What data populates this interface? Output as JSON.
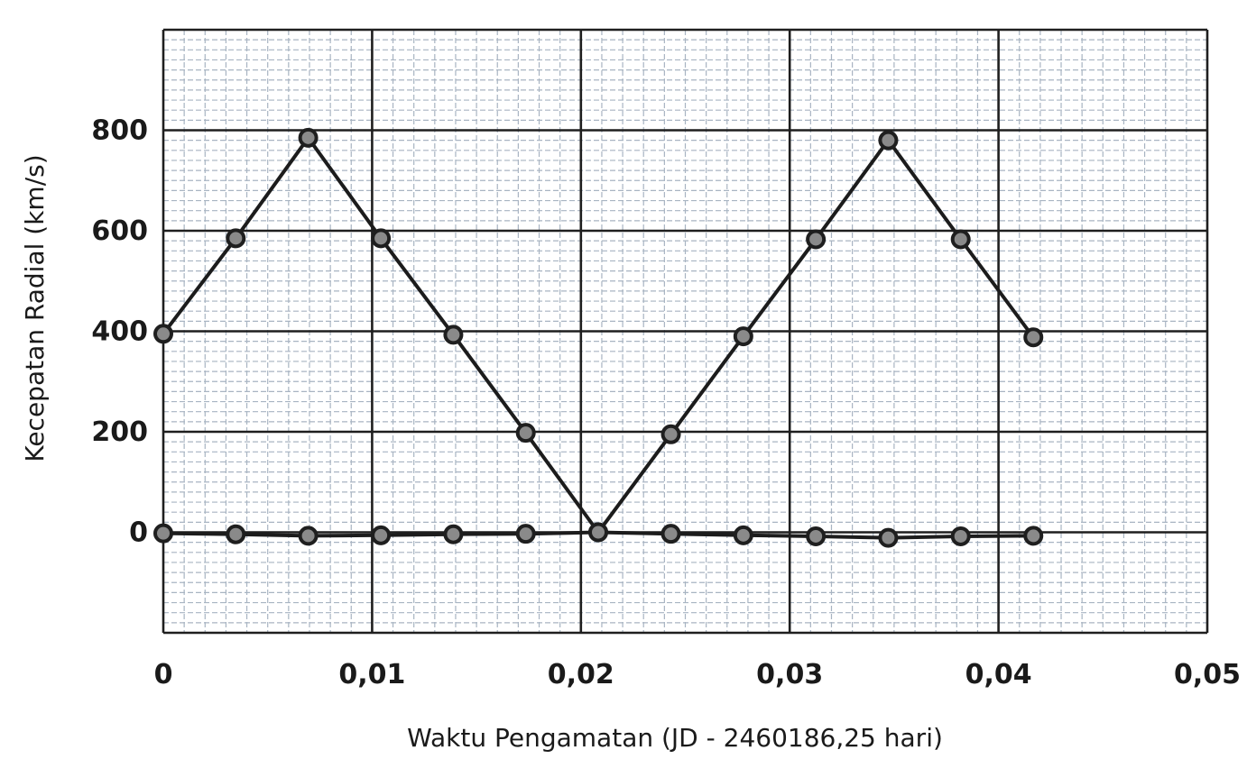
{
  "chart_data": {
    "type": "line",
    "xlabel": "Waktu Pengamatan (JD - 2460186,25 hari)",
    "ylabel": "Kecepatan Radial  (km/s)",
    "xlim": [
      0,
      0.05
    ],
    "ylim": [
      -200,
      1000
    ],
    "x_ticks": [
      "0",
      "0,01",
      "0,02",
      "0,03",
      "0,04",
      "0,05"
    ],
    "x_tick_values": [
      0,
      0.01,
      0.02,
      0.03,
      0.04,
      0.05
    ],
    "y_ticks": [
      "0",
      "200",
      "400",
      "600",
      "800"
    ],
    "y_tick_values": [
      0,
      200,
      400,
      600,
      800
    ],
    "grid": true,
    "series": [
      {
        "x": [
          0,
          0.00347,
          0.00694,
          0.01042,
          0.01389,
          0.01736,
          0.02083,
          0.02431,
          0.02778,
          0.03125,
          0.03472,
          0.03819,
          0.04167
        ],
        "values": [
          395,
          585,
          785,
          585,
          393,
          198,
          0,
          195,
          390,
          583,
          780,
          583,
          388
        ]
      },
      {
        "x": [
          0,
          0.00347,
          0.00694,
          0.01042,
          0.01389,
          0.01736,
          0.02083,
          0.02431,
          0.02778,
          0.03125,
          0.03472,
          0.03819,
          0.04167
        ],
        "values": [
          -2,
          -4,
          -7,
          -6,
          -4,
          -3,
          0,
          -3,
          -6,
          -8,
          -11,
          -8,
          -7
        ]
      }
    ]
  }
}
